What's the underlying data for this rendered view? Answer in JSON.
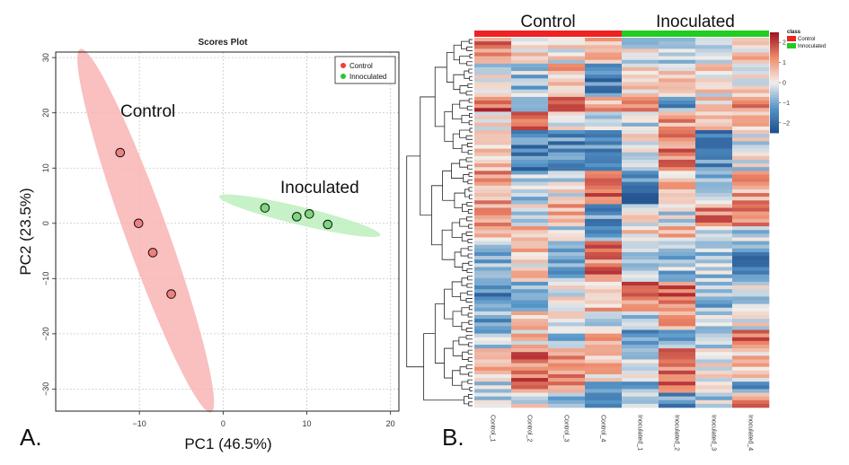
{
  "panel_a_label": "A.",
  "panel_b_label": "B.",
  "chart_data": [
    {
      "type": "scatter",
      "title": "Scores Plot",
      "xlabel": "PC1 (46.5%)",
      "ylabel": "PC2 (23.5%)",
      "xlim": [
        -20,
        21
      ],
      "ylim": [
        -34,
        31
      ],
      "xticks": [
        -10,
        0,
        10,
        20
      ],
      "yticks": [
        -30,
        -20,
        -10,
        0,
        10,
        20,
        30
      ],
      "grid": true,
      "legend": "top-right",
      "series": [
        {
          "name": "Control",
          "color": "#f03b3b",
          "fill": "#f08080",
          "ellipse_color": "#f9b4b4",
          "annotation": "Control",
          "x": [
            -12.3,
            -10.1,
            -8.4,
            -6.2
          ],
          "y": [
            12.8,
            0.0,
            -5.3,
            -12.8
          ]
        },
        {
          "name": "Innoculated",
          "color": "#34c234",
          "fill": "#7ed67e",
          "ellipse_color": "#bdeebd",
          "annotation": "Inoculated",
          "x": [
            5.0,
            8.8,
            10.3,
            12.5
          ],
          "y": [
            2.8,
            1.2,
            1.7,
            -0.2
          ]
        }
      ]
    },
    {
      "type": "heatmap",
      "group_labels": [
        "Control",
        "Inoculated"
      ],
      "group_colors": [
        "#ee2222",
        "#22cc22"
      ],
      "columns": [
        "Control_1",
        "Control_2",
        "Control_3",
        "Control_4",
        "Inoculated_1",
        "Inoculated_2",
        "Inoculated_3",
        "Inoculated_4"
      ],
      "column_groups": [
        0,
        0,
        0,
        0,
        1,
        1,
        1,
        1
      ],
      "n_rows": 100,
      "value_range": [
        -2.5,
        2.5
      ],
      "legend": {
        "title": "class",
        "entries": [
          "Control",
          "Innoculated"
        ],
        "ticks": [
          "2",
          "1",
          "0",
          "−1",
          "−2"
        ],
        "tick_values": [
          2,
          1,
          0,
          -1,
          -2
        ]
      }
    }
  ]
}
